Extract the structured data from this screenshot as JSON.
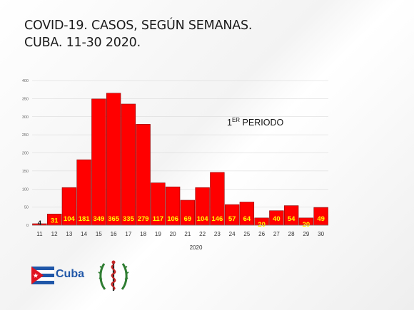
{
  "title_line1": "COVID-19. CASOS, SEGÚN SEMANAS.",
  "title_line2": "CUBA. 11-30 2020.",
  "annotation": {
    "prefix": "1",
    "sup": "ER",
    "rest": " PERIODO"
  },
  "logo": {
    "brand": "Cuba",
    "flag_icon": "cuba-flag-icon",
    "emblem_icon": "medical-emblem-icon"
  },
  "colors": {
    "bar": "#ff0000",
    "bar_edge": "#8b0000",
    "label": "#ffff00",
    "axis": "#888888",
    "grid": "#d4d4d4"
  },
  "chart_data": {
    "type": "bar",
    "title": "COVID-19. CASOS, SEGÚN SEMANAS. CUBA. 11-30 2020.",
    "xlabel": "2020",
    "ylabel": "",
    "categories": [
      "11",
      "12",
      "13",
      "14",
      "15",
      "16",
      "17",
      "18",
      "19",
      "20",
      "21",
      "22",
      "23",
      "24",
      "25",
      "26",
      "27",
      "28",
      "29",
      "30"
    ],
    "values": [
      4,
      31,
      104,
      181,
      349,
      365,
      335,
      279,
      117,
      106,
      69,
      104,
      146,
      57,
      64,
      20,
      40,
      54,
      20,
      49
    ],
    "ylim": [
      0,
      400
    ],
    "yticks": [
      0,
      50,
      100,
      150,
      200,
      250,
      300,
      350,
      400
    ],
    "grid": true,
    "legend": "none"
  }
}
